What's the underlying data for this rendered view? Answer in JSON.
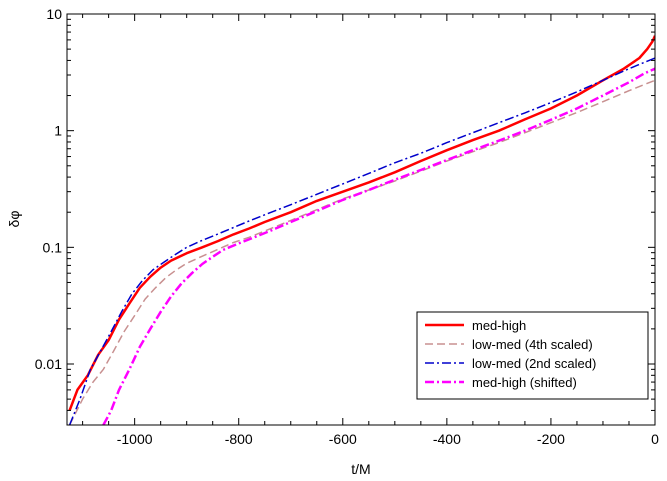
{
  "chart_data": {
    "type": "line",
    "xlabel": "t/M",
    "ylabel": "δφ",
    "xlim": [
      -1130,
      0
    ],
    "ylim": [
      0.003,
      10
    ],
    "yscale": "log",
    "x_ticks": [
      {
        "value": -1000,
        "label": "-1000"
      },
      {
        "value": -800,
        "label": "-800"
      },
      {
        "value": -600,
        "label": "-600"
      },
      {
        "value": -400,
        "label": "-400"
      },
      {
        "value": -200,
        "label": "-200"
      },
      {
        "value": 0,
        "label": "0"
      }
    ],
    "y_ticks": [
      {
        "value": 0.01,
        "label": "0.01"
      },
      {
        "value": 0.1,
        "label": "0.1"
      },
      {
        "value": 1,
        "label": "1"
      },
      {
        "value": 10,
        "label": "10"
      }
    ],
    "legend": {
      "position": "bottom-right",
      "framed": true
    },
    "series": [
      {
        "name": "med-high",
        "color": "#ff0000",
        "style": "solid",
        "width": 2.5,
        "points": [
          [
            -1125,
            0.004
          ],
          [
            -1110,
            0.006
          ],
          [
            -1090,
            0.008
          ],
          [
            -1070,
            0.012
          ],
          [
            -1050,
            0.016
          ],
          [
            -1030,
            0.024
          ],
          [
            -1010,
            0.033
          ],
          [
            -990,
            0.045
          ],
          [
            -970,
            0.056
          ],
          [
            -950,
            0.067
          ],
          [
            -930,
            0.077
          ],
          [
            -900,
            0.089
          ],
          [
            -870,
            0.1
          ],
          [
            -840,
            0.113
          ],
          [
            -810,
            0.129
          ],
          [
            -780,
            0.145
          ],
          [
            -750,
            0.165
          ],
          [
            -700,
            0.2
          ],
          [
            -650,
            0.25
          ],
          [
            -600,
            0.3
          ],
          [
            -550,
            0.36
          ],
          [
            -500,
            0.44
          ],
          [
            -450,
            0.55
          ],
          [
            -400,
            0.68
          ],
          [
            -350,
            0.83
          ],
          [
            -300,
            1.0
          ],
          [
            -250,
            1.25
          ],
          [
            -200,
            1.55
          ],
          [
            -150,
            2.0
          ],
          [
            -100,
            2.7
          ],
          [
            -60,
            3.4
          ],
          [
            -30,
            4.2
          ],
          [
            -15,
            5.0
          ],
          [
            -5,
            5.8
          ],
          [
            0,
            6.5
          ]
        ]
      },
      {
        "name": "low-med (4th scaled)",
        "color": "#c89090",
        "style": "dashed",
        "width": 1.5,
        "points": [
          [
            -1125,
            0.003
          ],
          [
            -1100,
            0.005
          ],
          [
            -1080,
            0.007
          ],
          [
            -1060,
            0.009
          ],
          [
            -1040,
            0.013
          ],
          [
            -1020,
            0.019
          ],
          [
            -1000,
            0.026
          ],
          [
            -980,
            0.036
          ],
          [
            -960,
            0.045
          ],
          [
            -940,
            0.055
          ],
          [
            -920,
            0.064
          ],
          [
            -900,
            0.073
          ],
          [
            -870,
            0.084
          ],
          [
            -840,
            0.096
          ],
          [
            -810,
            0.11
          ],
          [
            -780,
            0.122
          ],
          [
            -750,
            0.138
          ],
          [
            -700,
            0.17
          ],
          [
            -650,
            0.21
          ],
          [
            -600,
            0.26
          ],
          [
            -550,
            0.31
          ],
          [
            -500,
            0.37
          ],
          [
            -450,
            0.45
          ],
          [
            -400,
            0.55
          ],
          [
            -350,
            0.66
          ],
          [
            -300,
            0.79
          ],
          [
            -250,
            0.96
          ],
          [
            -200,
            1.17
          ],
          [
            -150,
            1.43
          ],
          [
            -100,
            1.77
          ],
          [
            -50,
            2.2
          ],
          [
            0,
            2.7
          ]
        ]
      },
      {
        "name": "low-med (2nd scaled)",
        "color": "#0000cc",
        "style": "dashdot",
        "width": 1.5,
        "points": [
          [
            -1125,
            0.003
          ],
          [
            -1105,
            0.005
          ],
          [
            -1085,
            0.009
          ],
          [
            -1065,
            0.013
          ],
          [
            -1045,
            0.019
          ],
          [
            -1025,
            0.028
          ],
          [
            -1005,
            0.04
          ],
          [
            -985,
            0.052
          ],
          [
            -965,
            0.064
          ],
          [
            -945,
            0.074
          ],
          [
            -925,
            0.085
          ],
          [
            -900,
            0.1
          ],
          [
            -870,
            0.115
          ],
          [
            -840,
            0.13
          ],
          [
            -810,
            0.148
          ],
          [
            -780,
            0.168
          ],
          [
            -750,
            0.19
          ],
          [
            -700,
            0.232
          ],
          [
            -650,
            0.285
          ],
          [
            -600,
            0.35
          ],
          [
            -550,
            0.43
          ],
          [
            -500,
            0.53
          ],
          [
            -450,
            0.64
          ],
          [
            -400,
            0.79
          ],
          [
            -350,
            0.96
          ],
          [
            -300,
            1.17
          ],
          [
            -250,
            1.42
          ],
          [
            -200,
            1.74
          ],
          [
            -150,
            2.15
          ],
          [
            -100,
            2.7
          ],
          [
            -50,
            3.4
          ],
          [
            0,
            4.2
          ]
        ]
      },
      {
        "name": "med-high (shifted)",
        "color": "#ff00ff",
        "style": "dashdot",
        "width": 2.5,
        "points": [
          [
            -1060,
            0.003
          ],
          [
            -1045,
            0.004
          ],
          [
            -1030,
            0.006
          ],
          [
            -1010,
            0.009
          ],
          [
            -990,
            0.014
          ],
          [
            -970,
            0.02
          ],
          [
            -950,
            0.028
          ],
          [
            -930,
            0.038
          ],
          [
            -910,
            0.049
          ],
          [
            -890,
            0.06
          ],
          [
            -870,
            0.072
          ],
          [
            -850,
            0.083
          ],
          [
            -830,
            0.095
          ],
          [
            -800,
            0.108
          ],
          [
            -770,
            0.122
          ],
          [
            -740,
            0.138
          ],
          [
            -700,
            0.165
          ],
          [
            -650,
            0.205
          ],
          [
            -600,
            0.255
          ],
          [
            -550,
            0.31
          ],
          [
            -500,
            0.38
          ],
          [
            -450,
            0.46
          ],
          [
            -400,
            0.56
          ],
          [
            -350,
            0.68
          ],
          [
            -300,
            0.82
          ],
          [
            -250,
            1.0
          ],
          [
            -200,
            1.24
          ],
          [
            -150,
            1.55
          ],
          [
            -100,
            2.0
          ],
          [
            -50,
            2.6
          ],
          [
            -20,
            3.1
          ],
          [
            0,
            3.4
          ]
        ]
      }
    ]
  }
}
